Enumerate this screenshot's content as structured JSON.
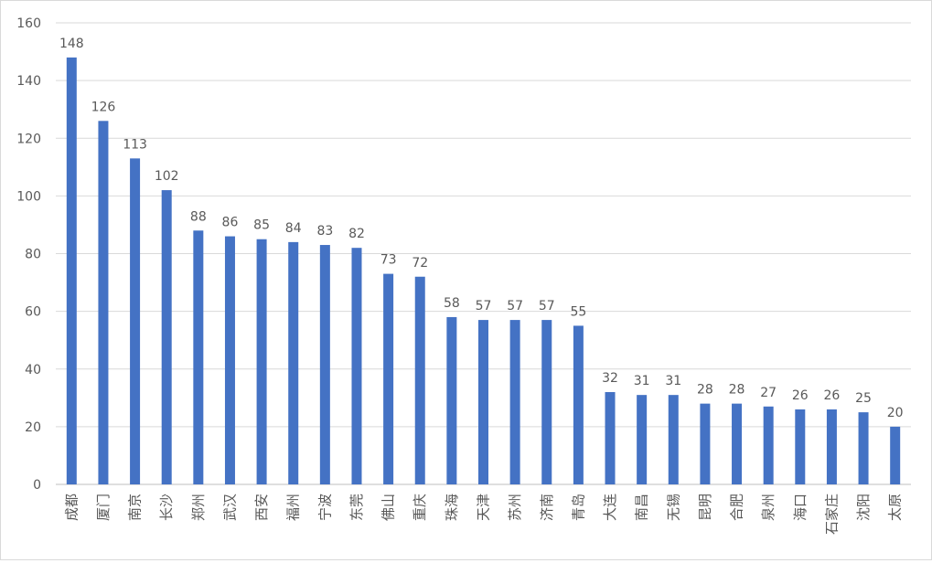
{
  "chart_data": {
    "type": "bar",
    "title": "",
    "xlabel": "",
    "ylabel": "",
    "ylim": [
      0,
      160
    ],
    "yticks": [
      0,
      20,
      40,
      60,
      80,
      100,
      120,
      140,
      160
    ],
    "grid": true,
    "legend": "none",
    "bar_color": "#4472C4",
    "categories": [
      "成都",
      "厦门",
      "南京",
      "长沙",
      "郑州",
      "武汉",
      "西安",
      "福州",
      "宁波",
      "东莞",
      "佛山",
      "重庆",
      "珠海",
      "天津",
      "苏州",
      "济南",
      "青岛",
      "大连",
      "南昌",
      "无锡",
      "昆明",
      "合肥",
      "泉州",
      "海口",
      "石家庄",
      "沈阳",
      "太原"
    ],
    "values": [
      148,
      126,
      113,
      102,
      88,
      86,
      85,
      84,
      83,
      82,
      73,
      72,
      58,
      57,
      57,
      57,
      55,
      32,
      31,
      31,
      28,
      28,
      27,
      26,
      26,
      25,
      20
    ]
  }
}
